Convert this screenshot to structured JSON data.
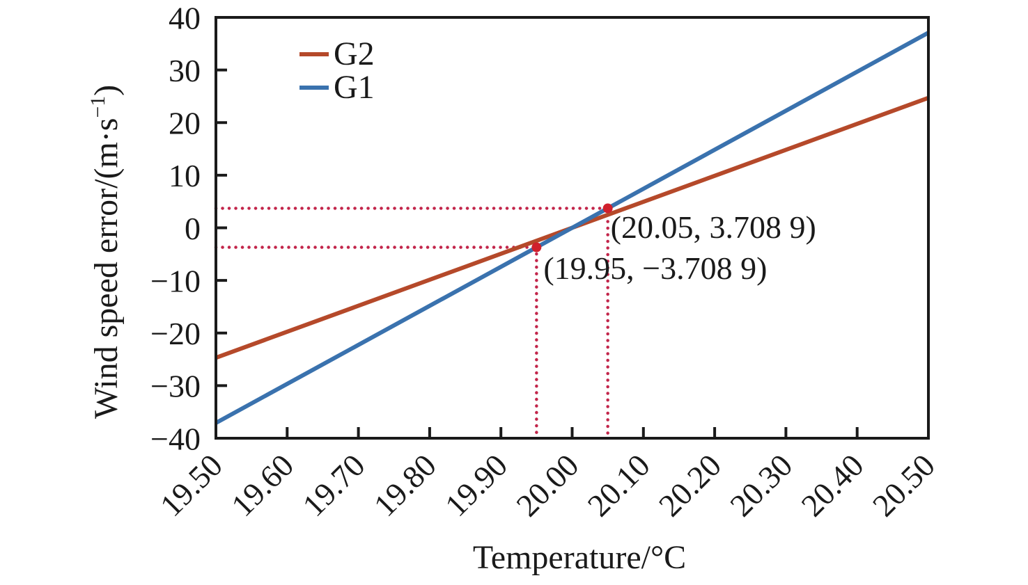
{
  "chart_data": {
    "type": "line",
    "title": "",
    "xlabel": "Temperature/°C",
    "ylabel": "Wind speed error/(m·s⁻¹)",
    "ylabel_parts": {
      "prefix": "Wind speed error/(m·s",
      "superscript": "−1",
      "suffix": ")"
    },
    "xlim": [
      19.5,
      20.5
    ],
    "ylim": [
      -40,
      40
    ],
    "grid": false,
    "legend_position": "top-left-inside",
    "x_ticks": [
      19.5,
      19.6,
      19.7,
      19.8,
      19.9,
      20.0,
      20.1,
      20.2,
      20.3,
      20.4,
      20.5
    ],
    "x_tick_labels": [
      "19.50",
      "19.60",
      "19.70",
      "19.80",
      "19.90",
      "20.00",
      "20.10",
      "20.20",
      "20.30",
      "20.40",
      "20.50"
    ],
    "y_ticks": [
      40,
      30,
      20,
      10,
      0,
      -10,
      -20,
      -30,
      -40
    ],
    "y_tick_labels": [
      "40",
      "30",
      "20",
      "10",
      "0",
      "−10",
      "−20",
      "−30",
      "−40"
    ],
    "series": [
      {
        "name": "G2",
        "color": "#b5492a",
        "x": [
          19.5,
          20.5
        ],
        "y": [
          -24.7,
          24.7
        ]
      },
      {
        "name": "G1",
        "color": "#3a72ae",
        "x": [
          19.5,
          20.5
        ],
        "y": [
          -37.089,
          37.089
        ]
      }
    ],
    "annotations": [
      {
        "x": 20.05,
        "y": 3.7089,
        "label": "(20.05, 3.708 9)",
        "on_series": "G1"
      },
      {
        "x": 19.95,
        "y": -3.7089,
        "label": "(19.95, −3.708 9)",
        "on_series": "G1"
      }
    ],
    "annotation_style": {
      "guide_color": "#c2254a",
      "marker_color": "#d0202c"
    }
  },
  "legend": {
    "items": [
      {
        "label": "G2",
        "color": "#b5492a"
      },
      {
        "label": "G1",
        "color": "#3a72ae"
      }
    ]
  },
  "colors": {
    "axis": "#1a1a1a",
    "text": "#1a1a1a",
    "background": "#ffffff"
  }
}
